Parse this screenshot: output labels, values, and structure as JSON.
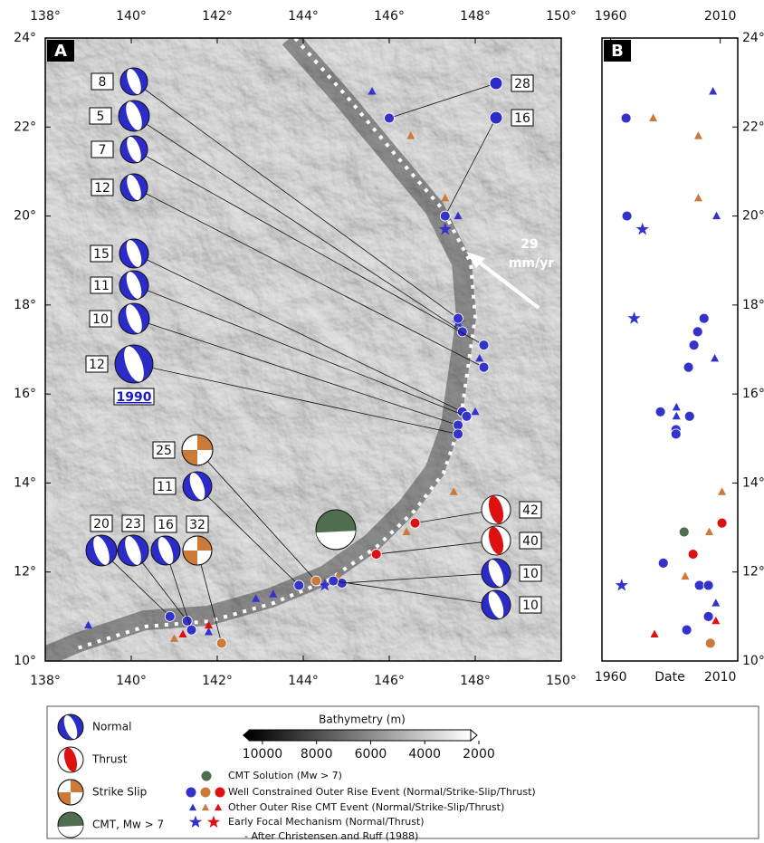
{
  "panel_a": {
    "label": "A",
    "xlim": [
      138,
      150
    ],
    "ylim": [
      10,
      24
    ],
    "xticks": [
      {
        "value": 138,
        "label": "138°"
      },
      {
        "value": 140,
        "label": "140°"
      },
      {
        "value": 142,
        "label": "142°"
      },
      {
        "value": 144,
        "label": "144°"
      },
      {
        "value": 146,
        "label": "146°"
      },
      {
        "value": 148,
        "label": "148°"
      },
      {
        "value": 150,
        "label": "150°"
      }
    ],
    "yticks": [
      {
        "value": 10,
        "label": "10°"
      },
      {
        "value": 12,
        "label": "12°"
      },
      {
        "value": 14,
        "label": "14°"
      },
      {
        "value": 16,
        "label": "16°"
      },
      {
        "value": 18,
        "label": "18°"
      },
      {
        "value": 20,
        "label": "20°"
      },
      {
        "value": 22,
        "label": "22°"
      },
      {
        "value": 24,
        "label": "24°"
      }
    ],
    "note_1990": "1990",
    "velocity": 29,
    "velocity_unit": "mm/yr",
    "mechanisms": [
      {
        "depth": 8,
        "type": "Normal",
        "lon": 147.6,
        "lat": 17.7
      },
      {
        "depth": 5,
        "type": "Normal",
        "lon": 147.7,
        "lat": 17.4
      },
      {
        "depth": 7,
        "type": "Normal",
        "lon": 148.2,
        "lat": 17.1
      },
      {
        "depth": 12,
        "type": "Normal",
        "lon": 148.2,
        "lat": 16.6
      },
      {
        "depth": 15,
        "type": "Normal",
        "lon": 147.7,
        "lat": 15.6
      },
      {
        "depth": 11,
        "type": "Normal",
        "lon": 147.8,
        "lat": 15.5
      },
      {
        "depth": 10,
        "type": "Normal",
        "lon": 147.6,
        "lat": 15.3
      },
      {
        "depth": 12,
        "type": "Normal",
        "lon": 147.6,
        "lat": 15.1
      },
      {
        "depth": 25,
        "type": "Strike Slip",
        "lon": 144.3,
        "lat": 11.8
      },
      {
        "depth": 11,
        "type": "Normal",
        "lon": 143.9,
        "lat": 11.7
      },
      {
        "depth": 20,
        "type": "Normal",
        "lon": 140.9,
        "lat": 11.0
      },
      {
        "depth": 23,
        "type": "Normal",
        "lon": 141.3,
        "lat": 10.9
      },
      {
        "depth": 16,
        "type": "Normal",
        "lon": 141.4,
        "lat": 10.7
      },
      {
        "depth": 32,
        "type": "Strike Slip",
        "lon": 142.1,
        "lat": 10.4
      },
      {
        "depth": 42,
        "type": "Thrust",
        "lon": 146.6,
        "lat": 13.1
      },
      {
        "depth": 40,
        "type": "Thrust",
        "lon": 145.7,
        "lat": 12.4
      },
      {
        "depth": 10,
        "type": "Normal",
        "lon": 144.9,
        "lat": 11.75
      },
      {
        "depth": 10,
        "type": "Normal",
        "lon": 144.7,
        "lat": 11.8
      },
      {
        "depth": 28,
        "type": "Event",
        "lon": 146.0,
        "lat": 22.2
      },
      {
        "depth": 16,
        "type": "Event",
        "lon": 147.3,
        "lat": 20.0
      }
    ],
    "events": [
      {
        "lon": 145.6,
        "lat": 22.8,
        "kind": "triangle",
        "color": "#3333cc"
      },
      {
        "lon": 146.5,
        "lat": 21.8,
        "kind": "triangle",
        "color": "#cc7a3a"
      },
      {
        "lon": 147.3,
        "lat": 20.4,
        "kind": "triangle",
        "color": "#cc7a3a"
      },
      {
        "lon": 147.6,
        "lat": 20.0,
        "kind": "triangle",
        "color": "#3333cc"
      },
      {
        "lon": 148.1,
        "lat": 16.8,
        "kind": "triangle",
        "color": "#3333cc"
      },
      {
        "lon": 148.0,
        "lat": 15.6,
        "kind": "triangle",
        "color": "#3333cc"
      },
      {
        "lon": 147.5,
        "lat": 13.8,
        "kind": "triangle",
        "color": "#cc7a3a"
      },
      {
        "lon": 146.4,
        "lat": 12.9,
        "kind": "triangle",
        "color": "#cc7a3a"
      },
      {
        "lon": 144.8,
        "lat": 11.9,
        "kind": "triangle",
        "color": "#cc7a3a"
      },
      {
        "lon": 142.9,
        "lat": 11.4,
        "kind": "triangle",
        "color": "#3333cc"
      },
      {
        "lon": 143.3,
        "lat": 11.5,
        "kind": "triangle",
        "color": "#3333cc"
      },
      {
        "lon": 141.8,
        "lat": 10.8,
        "kind": "triangle",
        "color": "#dd1111"
      },
      {
        "lon": 141.8,
        "lat": 10.65,
        "kind": "triangle",
        "color": "#3333cc"
      },
      {
        "lon": 141.0,
        "lat": 10.5,
        "kind": "triangle",
        "color": "#cc7a3a"
      },
      {
        "lon": 141.2,
        "lat": 10.6,
        "kind": "triangle",
        "color": "#dd1111"
      },
      {
        "lon": 139.0,
        "lat": 10.8,
        "kind": "triangle",
        "color": "#3333cc"
      },
      {
        "lon": 147.3,
        "lat": 19.7,
        "kind": "star",
        "color": "#3333cc"
      },
      {
        "lon": 147.6,
        "lat": 17.6,
        "kind": "star",
        "color": "#3333cc"
      },
      {
        "lon": 144.5,
        "lat": 11.7,
        "kind": "star",
        "color": "#3333cc"
      }
    ]
  },
  "panel_b": {
    "label": "B",
    "xlabel": "Date",
    "xlim": [
      1956,
      2018
    ],
    "ylim": [
      10,
      24
    ],
    "xticks": [
      1960,
      2010
    ],
    "yticks": [
      {
        "value": 10,
        "label": "10°"
      },
      {
        "value": 12,
        "label": "12°"
      },
      {
        "value": 14,
        "label": "14°"
      },
      {
        "value": 16,
        "label": "16°"
      },
      {
        "value": 18,
        "label": "18°"
      },
      {
        "value": 20,
        "label": "20°"
      },
      {
        "value": 22,
        "label": "22°"
      },
      {
        "value": 24,
        "label": "24°"
      }
    ],
    "points": [
      {
        "year": 1967,
        "lat": 22.2,
        "kind": "circle",
        "color": "#3333cc"
      },
      {
        "year": 1967.4,
        "lat": 20.0,
        "kind": "circle",
        "color": "#3333cc"
      },
      {
        "year": 2002.6,
        "lat": 17.7,
        "kind": "circle",
        "color": "#3333cc"
      },
      {
        "year": 1999.7,
        "lat": 17.4,
        "kind": "circle",
        "color": "#3333cc"
      },
      {
        "year": 1998,
        "lat": 17.1,
        "kind": "circle",
        "color": "#3333cc"
      },
      {
        "year": 1995.5,
        "lat": 16.6,
        "kind": "circle",
        "color": "#3333cc"
      },
      {
        "year": 1982.7,
        "lat": 15.6,
        "kind": "circle",
        "color": "#3333cc"
      },
      {
        "year": 1996,
        "lat": 15.5,
        "kind": "circle",
        "color": "#3333cc"
      },
      {
        "year": 1989.8,
        "lat": 15.2,
        "kind": "circle",
        "color": "#3333cc"
      },
      {
        "year": 1989.8,
        "lat": 15.1,
        "kind": "circle",
        "color": "#3333cc"
      },
      {
        "year": 1984,
        "lat": 12.2,
        "kind": "circle",
        "color": "#3333cc"
      },
      {
        "year": 2000.5,
        "lat": 11.7,
        "kind": "circle",
        "color": "#3333cc"
      },
      {
        "year": 2004.6,
        "lat": 11.7,
        "kind": "circle",
        "color": "#3333cc"
      },
      {
        "year": 2004.6,
        "lat": 11.0,
        "kind": "circle",
        "color": "#3333cc"
      },
      {
        "year": 1994.7,
        "lat": 10.7,
        "kind": "circle",
        "color": "#3333cc"
      },
      {
        "year": 2005.5,
        "lat": 10.4,
        "kind": "circle",
        "color": "#cc7a3a"
      },
      {
        "year": 1997.6,
        "lat": 12.4,
        "kind": "circle",
        "color": "#dd1111"
      },
      {
        "year": 2010.8,
        "lat": 13.1,
        "kind": "circle",
        "color": "#dd1111"
      },
      {
        "year": 1993.5,
        "lat": 12.9,
        "kind": "circle",
        "color": "#4f6e4f"
      },
      {
        "year": 1974.5,
        "lat": 19.7,
        "kind": "star",
        "color": "#3333cc"
      },
      {
        "year": 1970.7,
        "lat": 17.7,
        "kind": "star",
        "color": "#3333cc"
      },
      {
        "year": 1965,
        "lat": 11.7,
        "kind": "star",
        "color": "#3333cc"
      },
      {
        "year": 2006.7,
        "lat": 22.8,
        "kind": "triangle",
        "color": "#3333cc"
      },
      {
        "year": 2008.3,
        "lat": 20.0,
        "kind": "triangle",
        "color": "#3333cc"
      },
      {
        "year": 2007.5,
        "lat": 16.8,
        "kind": "triangle",
        "color": "#3333cc"
      },
      {
        "year": 1990,
        "lat": 15.7,
        "kind": "triangle",
        "color": "#3333cc"
      },
      {
        "year": 1990,
        "lat": 15.5,
        "kind": "triangle",
        "color": "#3333cc"
      },
      {
        "year": 2008,
        "lat": 11.3,
        "kind": "triangle",
        "color": "#3333cc"
      },
      {
        "year": 1979.4,
        "lat": 22.2,
        "kind": "triangle",
        "color": "#cc7a3a"
      },
      {
        "year": 2000,
        "lat": 21.8,
        "kind": "triangle",
        "color": "#cc7a3a"
      },
      {
        "year": 2000,
        "lat": 20.4,
        "kind": "triangle",
        "color": "#cc7a3a"
      },
      {
        "year": 2010.8,
        "lat": 13.8,
        "kind": "triangle",
        "color": "#cc7a3a"
      },
      {
        "year": 2005,
        "lat": 12.9,
        "kind": "triangle",
        "color": "#cc7a3a"
      },
      {
        "year": 1994,
        "lat": 11.9,
        "kind": "triangle",
        "color": "#cc7a3a"
      },
      {
        "year": 1980,
        "lat": 10.6,
        "kind": "triangle",
        "color": "#dd1111"
      },
      {
        "year": 2008,
        "lat": 10.9,
        "kind": "triangle",
        "color": "#dd1111"
      }
    ]
  },
  "legend": {
    "mechanisms": [
      "Normal",
      "Thrust",
      "Strike Slip",
      "CMT, Mw > 7"
    ],
    "colorbar_title": "Bathymetry (m)",
    "colorbar_lim": [
      10500,
      2300
    ],
    "colorbar_ticks": [
      10000,
      8000,
      6000,
      4000,
      2000
    ],
    "events": [
      "CMT Solution (Mw > 7)",
      "Well Constrained Outer Rise Event (Normal/Strike-Slip/Thrust)",
      "Other Outer Rise CMT Event (Normal/Strike-Slip/Thrust)",
      "Early Focal Mechanism (Normal/Thrust)",
      "- After Christensen and Ruff (1988)"
    ]
  }
}
